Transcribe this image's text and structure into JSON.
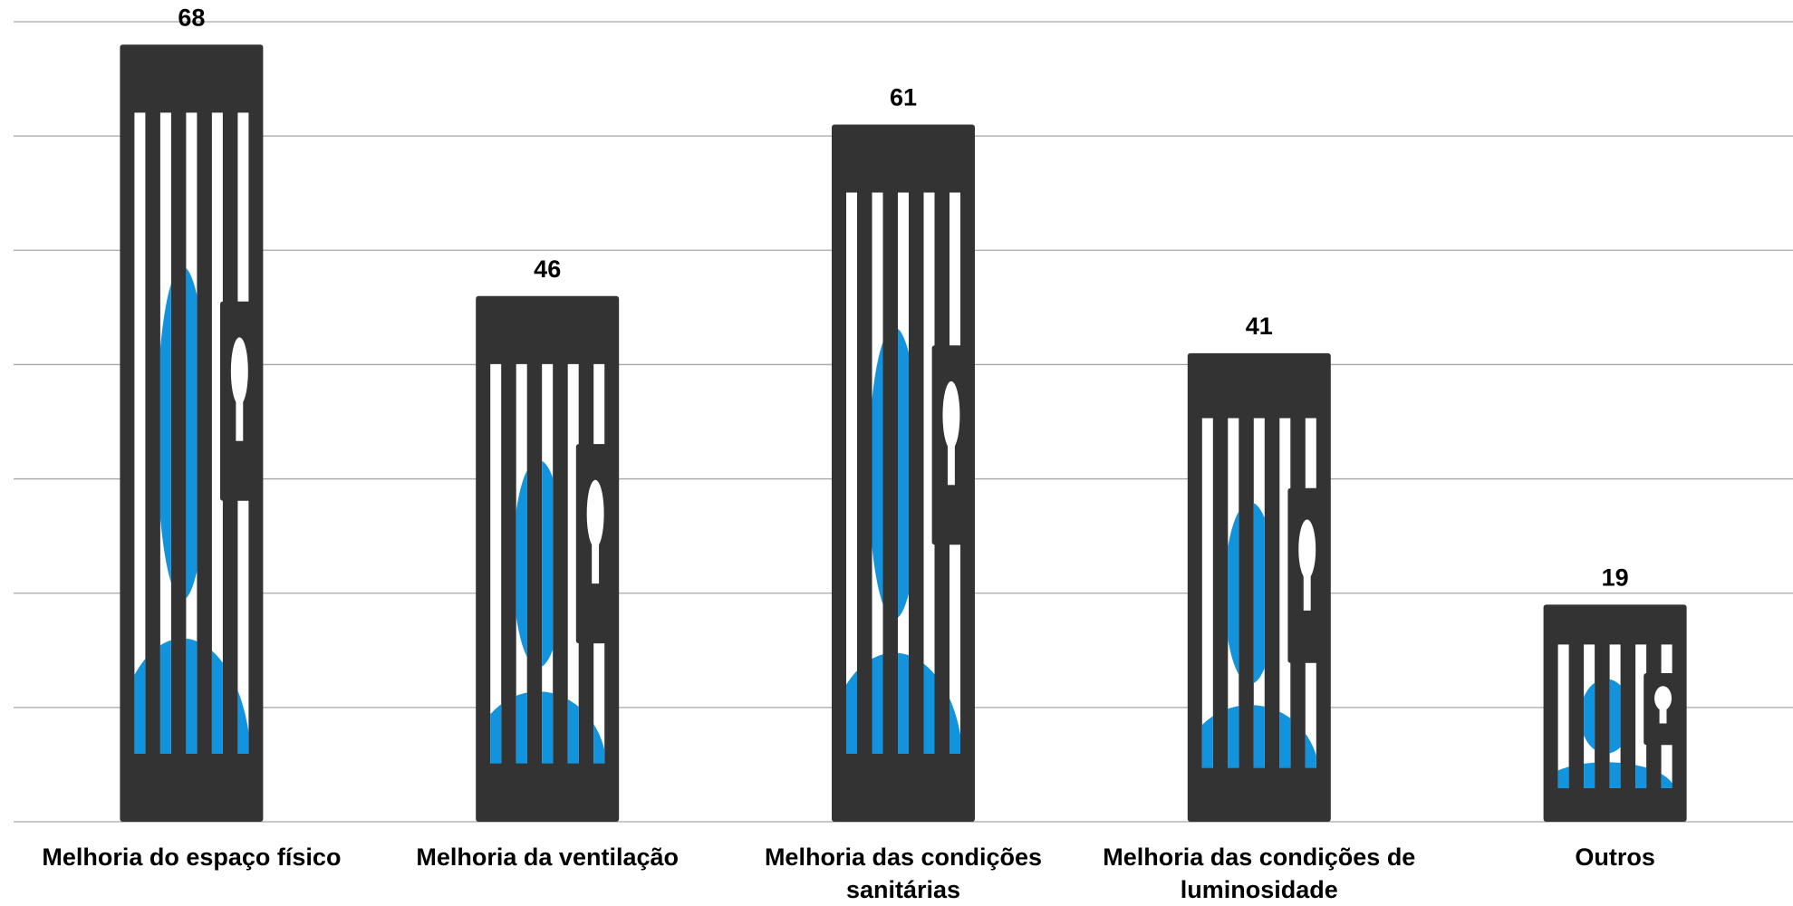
{
  "chart_data": {
    "type": "bar",
    "categories": [
      "Melhoria do espaço físico",
      "Melhoria da ventilação",
      "Melhoria das condições sanitárias",
      "Melhoria das condições de luminosidade",
      "Outros"
    ],
    "values": [
      68,
      46,
      61,
      41,
      19
    ],
    "color": "#333333",
    "ylim": [
      0,
      70
    ],
    "yticks": [
      0,
      10,
      20,
      30,
      40,
      50,
      60,
      70
    ],
    "grid": true
  }
}
